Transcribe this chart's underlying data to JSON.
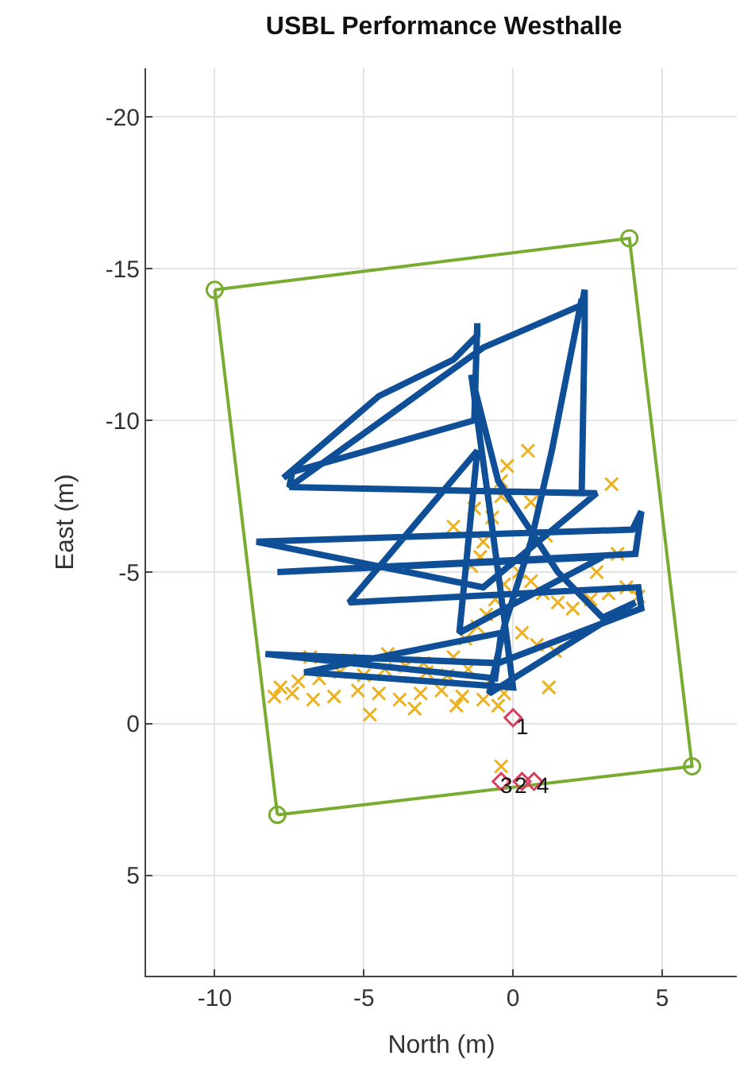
{
  "chart_data": {
    "type": "line",
    "title": "USBL Performance Westhalle",
    "xlabel": "North (m)",
    "ylabel": "East (m)",
    "xlim": [
      -12.3,
      7.5
    ],
    "ylim": [
      8.3,
      -21.6
    ],
    "xticks": [
      -10,
      -5,
      0,
      5
    ],
    "yticks": [
      -20,
      -15,
      -10,
      -5,
      0,
      5
    ],
    "grid": true,
    "series": [
      {
        "type": "scatter",
        "marker": "cross",
        "color": "#edb120",
        "x": [
          -7.8,
          -7.2,
          -6.5,
          -5.8,
          -5.0,
          -4.3,
          -3.6,
          -2.9,
          -2.2,
          -1.5,
          -0.8,
          -0.3,
          -8.0,
          -7.4,
          -6.7,
          -6.0,
          -5.2,
          -4.5,
          -3.8,
          -3.1,
          -2.4,
          -1.7,
          -1.0,
          -0.5,
          -6.8,
          -5.5,
          -4.2,
          -3.0,
          -2.0,
          -4.8,
          -3.3,
          -1.9,
          -1.6,
          -1.2,
          -0.9,
          -0.6,
          -0.3,
          0.2,
          0.6,
          1.0,
          1.5,
          2.0,
          2.6,
          3.2,
          3.8,
          4.2,
          3.5,
          2.8,
          -1.4,
          -1.0,
          -0.7,
          -0.4,
          0.3,
          0.8,
          1.4,
          -2.0,
          -1.3,
          -0.4,
          0.6,
          1.1,
          -1.1,
          -0.2,
          0.5,
          -0.4,
          1.2,
          3.3
        ],
        "values": [
          -1.2,
          -1.4,
          -1.5,
          -1.7,
          -1.6,
          -1.8,
          -1.9,
          -1.7,
          -1.6,
          -1.8,
          -1.4,
          -1.0,
          -0.9,
          -1.0,
          -0.8,
          -0.9,
          -1.1,
          -1.0,
          -0.8,
          -1.0,
          -1.1,
          -0.9,
          -0.8,
          -0.6,
          -2.2,
          -2.1,
          -2.3,
          -2.0,
          -2.2,
          -0.3,
          -0.5,
          -0.6,
          -2.8,
          -3.2,
          -3.6,
          -4.1,
          -4.6,
          -5.0,
          -4.7,
          -4.3,
          -4.0,
          -3.8,
          -4.1,
          -4.3,
          -4.5,
          -4.2,
          -5.6,
          -5.0,
          -5.2,
          -6.0,
          -6.8,
          -7.5,
          -3.0,
          -2.6,
          -2.4,
          -6.5,
          -7.1,
          -8.0,
          -7.3,
          -6.2,
          -5.5,
          -8.5,
          -9.0,
          1.4,
          -1.2,
          -7.9
        ]
      },
      {
        "marker": "none",
        "color": "#0e4f98",
        "x": [
          -7.7,
          -4.5,
          -2.0,
          -1.2,
          -1.2,
          -1.3,
          -7.4,
          -7.5,
          -1.0,
          2.3,
          2.4,
          2.4,
          2.3,
          -7.5,
          2.8,
          -1.0,
          -8.6,
          4.0,
          4.3,
          4.1,
          -7.9,
          3.0,
          -1.8,
          -1.5,
          -1.2,
          -5.5,
          4.2,
          4.3,
          -0.5,
          -8.3,
          -0.6,
          -0.4,
          -7.0,
          0.0,
          -0.3,
          -0.8,
          -1.4,
          -0.5,
          1.5,
          3.0,
          4.1,
          -0.8,
          -0.3,
          0.6,
          1.3,
          2.3
        ],
        "values": [
          -8.1,
          -10.8,
          -12.0,
          -12.8,
          -13.2,
          -10.0,
          -8.3,
          -7.8,
          -12.4,
          -13.8,
          -14.3,
          -13.0,
          -7.6,
          -7.8,
          -7.6,
          -4.5,
          -6.0,
          -6.4,
          -7.0,
          -5.6,
          -5.0,
          -5.5,
          -3.0,
          -6.0,
          -9.0,
          -4.0,
          -4.5,
          -3.8,
          -2.0,
          -2.3,
          -1.5,
          -3.0,
          -1.7,
          -1.2,
          -3.5,
          -7.2,
          -11.5,
          -8.0,
          -5.0,
          -3.5,
          -4.0,
          -1.0,
          -3.2,
          -6.0,
          -9.0,
          -14.0
        ]
      },
      {
        "marker": "circle",
        "color": "#77ac30",
        "x": [
          -10.0,
          3.9,
          6.0,
          -7.9
        ],
        "values": [
          -14.3,
          -16.0,
          1.4,
          3.0
        ]
      },
      {
        "marker": "none",
        "color": "#77ac30",
        "x": [
          -7.9,
          -10.0
        ],
        "values": [
          3.0,
          -14.3
        ]
      },
      {
        "type": "scatter",
        "marker": "diamond",
        "color": "#d9405f",
        "x": [
          0.0,
          -0.4,
          0.3,
          0.7
        ],
        "values": [
          -0.2,
          1.9,
          1.9,
          1.9
        ]
      }
    ],
    "annotations": [
      {
        "text": "1",
        "x": 0.3,
        "y": 0.1
      },
      {
        "text": "3",
        "x": -0.2,
        "y": 2.0
      },
      {
        "text": "2",
        "x": 0.25,
        "y": 2.0
      },
      {
        "text": "4",
        "x": 1.0,
        "y": 2.0
      }
    ]
  }
}
